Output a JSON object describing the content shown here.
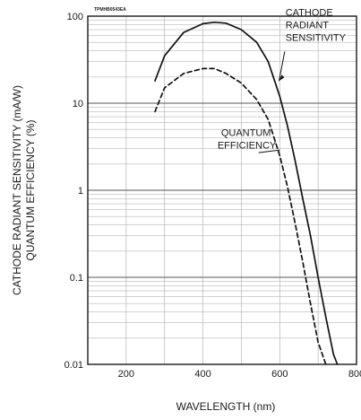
{
  "chart_data": {
    "type": "line",
    "figure_code": "TPMHB0543EA",
    "xlabel": "WAVELENGTH (nm)",
    "ylabel_lines": [
      "CATHODE RADIANT SENSITIVITY (mA/W)",
      "QUANTUM EFFICIENCY (%)"
    ],
    "xlim": [
      100,
      800
    ],
    "ylim": [
      0.01,
      100
    ],
    "y_scale": "log",
    "grid": true,
    "x_ticks": [
      200,
      400,
      600,
      800
    ],
    "y_ticks": [
      {
        "value": 100,
        "label": "100"
      },
      {
        "value": 10,
        "label": "10"
      },
      {
        "value": 1,
        "label": "1"
      },
      {
        "value": 0.1,
        "label": "0.1"
      },
      {
        "value": 0.01,
        "label": "0.01"
      }
    ],
    "series": [
      {
        "label_lines": [
          "CATHODE",
          "RADIANT",
          "SENSITIVITY"
        ],
        "style": "solid",
        "x": [
          275,
          300,
          350,
          400,
          430,
          460,
          500,
          540,
          570,
          600,
          620,
          640,
          660,
          680,
          700,
          720,
          740,
          750
        ],
        "y": [
          18,
          35,
          65,
          82,
          85,
          83,
          70,
          50,
          30,
          12,
          5.5,
          2.2,
          0.8,
          0.3,
          0.1,
          0.035,
          0.013,
          0.01
        ]
      },
      {
        "label_lines": [
          "QUANTUM",
          "EFFICIENCY"
        ],
        "style": "dashed",
        "x": [
          275,
          300,
          350,
          400,
          430,
          460,
          500,
          540,
          570,
          600,
          620,
          640,
          660,
          680,
          700,
          720
        ],
        "y": [
          8,
          15,
          22,
          25,
          25,
          22,
          17,
          11,
          6.5,
          2.5,
          1.1,
          0.42,
          0.15,
          0.05,
          0.018,
          0.01
        ]
      }
    ]
  }
}
